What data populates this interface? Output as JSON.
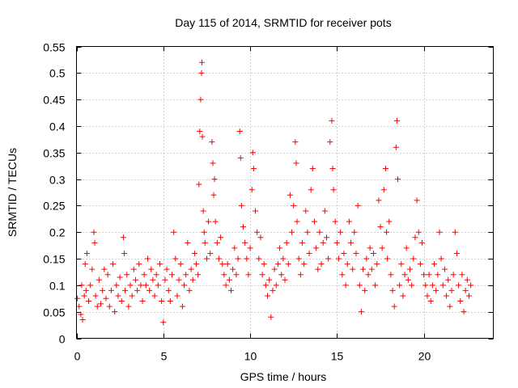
{
  "chart_data": {
    "type": "scatter",
    "title": "Day 115 of 2014, SRMTID for receiver pots",
    "xlabel": "GPS time / hours",
    "ylabel": "SRMTID / TECUs",
    "xlim": [
      0,
      24
    ],
    "ylim": [
      0,
      0.55
    ],
    "x_ticks": [
      0,
      5,
      10,
      15,
      20
    ],
    "x_tick_labels": [
      "0",
      "5",
      "10",
      "15",
      "20"
    ],
    "y_ticks": [
      0,
      0.05,
      0.1,
      0.15,
      0.2,
      0.25,
      0.3,
      0.35,
      0.4,
      0.45,
      0.5,
      0.55
    ],
    "y_tick_labels": [
      "0",
      "0.05",
      "0.1",
      "0.15",
      "0.2",
      "0.25",
      "0.3",
      "0.35",
      "0.4",
      "0.45",
      "0.5",
      "0.55"
    ],
    "grid": true,
    "marker": "plus",
    "colors": {
      "series": "#ff0000",
      "grid": "#a0a0a0",
      "axes": "#000000"
    },
    "series": [
      {
        "name": "SRMTID",
        "points": [
          [
            0.05,
            0.075
          ],
          [
            0.15,
            0.06
          ],
          [
            0.25,
            0.045
          ],
          [
            0.3,
            0.1
          ],
          [
            0.35,
            0.035
          ],
          [
            0.45,
            0.08
          ],
          [
            0.5,
            0.14
          ],
          [
            0.55,
            0.09
          ],
          [
            0.6,
            0.16
          ],
          [
            0.7,
            0.07
          ],
          [
            0.8,
            0.1
          ],
          [
            0.9,
            0.13
          ],
          [
            1.0,
            0.2
          ],
          [
            1.05,
            0.18
          ],
          [
            1.1,
            0.08
          ],
          [
            1.2,
            0.06
          ],
          [
            1.3,
            0.11
          ],
          [
            1.4,
            0.065
          ],
          [
            1.5,
            0.09
          ],
          [
            1.6,
            0.13
          ],
          [
            1.7,
            0.075
          ],
          [
            1.8,
            0.12
          ],
          [
            1.9,
            0.06
          ],
          [
            2.0,
            0.09
          ],
          [
            2.1,
            0.14
          ],
          [
            2.2,
            0.05
          ],
          [
            2.3,
            0.1
          ],
          [
            2.4,
            0.08
          ],
          [
            2.5,
            0.115
          ],
          [
            2.6,
            0.07
          ],
          [
            2.7,
            0.19
          ],
          [
            2.75,
            0.16
          ],
          [
            2.8,
            0.09
          ],
          [
            2.9,
            0.12
          ],
          [
            3.0,
            0.06
          ],
          [
            3.1,
            0.1
          ],
          [
            3.2,
            0.08
          ],
          [
            3.3,
            0.13
          ],
          [
            3.4,
            0.11
          ],
          [
            3.5,
            0.09
          ],
          [
            3.6,
            0.14
          ],
          [
            3.7,
            0.1
          ],
          [
            3.8,
            0.07
          ],
          [
            3.9,
            0.12
          ],
          [
            4.0,
            0.1
          ],
          [
            4.1,
            0.15
          ],
          [
            4.2,
            0.09
          ],
          [
            4.3,
            0.13
          ],
          [
            4.4,
            0.11
          ],
          [
            4.5,
            0.08
          ],
          [
            4.6,
            0.12
          ],
          [
            4.7,
            0.1
          ],
          [
            4.8,
            0.14
          ],
          [
            4.9,
            0.07
          ],
          [
            5.0,
            0.03
          ],
          [
            5.1,
            0.11
          ],
          [
            5.2,
            0.13
          ],
          [
            5.3,
            0.09
          ],
          [
            5.4,
            0.07
          ],
          [
            5.5,
            0.12
          ],
          [
            5.6,
            0.2
          ],
          [
            5.7,
            0.15
          ],
          [
            5.8,
            0.08
          ],
          [
            5.9,
            0.11
          ],
          [
            6.0,
            0.14
          ],
          [
            6.1,
            0.06
          ],
          [
            6.2,
            0.1
          ],
          [
            6.3,
            0.12
          ],
          [
            6.4,
            0.18
          ],
          [
            6.5,
            0.09
          ],
          [
            6.6,
            0.13
          ],
          [
            6.7,
            0.11
          ],
          [
            6.8,
            0.16
          ],
          [
            6.9,
            0.14
          ],
          [
            7.0,
            0.12
          ],
          [
            7.05,
            0.29
          ],
          [
            7.1,
            0.39
          ],
          [
            7.15,
            0.45
          ],
          [
            7.2,
            0.5
          ],
          [
            7.22,
            0.52
          ],
          [
            7.25,
            0.38
          ],
          [
            7.3,
            0.24
          ],
          [
            7.35,
            0.2
          ],
          [
            7.4,
            0.18
          ],
          [
            7.5,
            0.15
          ],
          [
            7.6,
            0.22
          ],
          [
            7.7,
            0.16
          ],
          [
            7.8,
            0.37
          ],
          [
            7.85,
            0.33
          ],
          [
            7.9,
            0.27
          ],
          [
            7.95,
            0.3
          ],
          [
            8.0,
            0.22
          ],
          [
            8.1,
            0.18
          ],
          [
            8.2,
            0.15
          ],
          [
            8.3,
            0.19
          ],
          [
            8.4,
            0.14
          ],
          [
            8.5,
            0.12
          ],
          [
            8.6,
            0.1
          ],
          [
            8.7,
            0.14
          ],
          [
            8.8,
            0.11
          ],
          [
            8.9,
            0.09
          ],
          [
            9.0,
            0.13
          ],
          [
            9.1,
            0.17
          ],
          [
            9.2,
            0.12
          ],
          [
            9.3,
            0.15
          ],
          [
            9.4,
            0.39
          ],
          [
            9.45,
            0.34
          ],
          [
            9.5,
            0.25
          ],
          [
            9.6,
            0.21
          ],
          [
            9.7,
            0.18
          ],
          [
            9.8,
            0.15
          ],
          [
            9.9,
            0.12
          ],
          [
            10.0,
            0.17
          ],
          [
            10.1,
            0.28
          ],
          [
            10.15,
            0.35
          ],
          [
            10.2,
            0.32
          ],
          [
            10.3,
            0.24
          ],
          [
            10.4,
            0.2
          ],
          [
            10.5,
            0.15
          ],
          [
            10.6,
            0.19
          ],
          [
            10.7,
            0.12
          ],
          [
            10.8,
            0.14
          ],
          [
            10.9,
            0.1
          ],
          [
            11.0,
            0.08
          ],
          [
            11.1,
            0.11
          ],
          [
            11.2,
            0.04
          ],
          [
            11.3,
            0.09
          ],
          [
            11.4,
            0.13
          ],
          [
            11.5,
            0.1
          ],
          [
            11.6,
            0.14
          ],
          [
            11.7,
            0.17
          ],
          [
            11.8,
            0.12
          ],
          [
            11.9,
            0.15
          ],
          [
            12.0,
            0.11
          ],
          [
            12.1,
            0.18
          ],
          [
            12.2,
            0.14
          ],
          [
            12.3,
            0.27
          ],
          [
            12.4,
            0.2
          ],
          [
            12.5,
            0.25
          ],
          [
            12.6,
            0.37
          ],
          [
            12.65,
            0.33
          ],
          [
            12.7,
            0.22
          ],
          [
            12.8,
            0.15
          ],
          [
            12.9,
            0.12
          ],
          [
            13.0,
            0.18
          ],
          [
            13.1,
            0.14
          ],
          [
            13.2,
            0.24
          ],
          [
            13.3,
            0.2
          ],
          [
            13.4,
            0.16
          ],
          [
            13.5,
            0.28
          ],
          [
            13.6,
            0.32
          ],
          [
            13.7,
            0.22
          ],
          [
            13.8,
            0.17
          ],
          [
            13.9,
            0.13
          ],
          [
            14.0,
            0.2
          ],
          [
            14.1,
            0.14
          ],
          [
            14.2,
            0.18
          ],
          [
            14.3,
            0.24
          ],
          [
            14.4,
            0.19
          ],
          [
            14.5,
            0.15
          ],
          [
            14.6,
            0.37
          ],
          [
            14.7,
            0.41
          ],
          [
            14.75,
            0.32
          ],
          [
            14.8,
            0.28
          ],
          [
            14.9,
            0.22
          ],
          [
            15.0,
            0.18
          ],
          [
            15.1,
            0.15
          ],
          [
            15.2,
            0.2
          ],
          [
            15.3,
            0.12
          ],
          [
            15.4,
            0.16
          ],
          [
            15.5,
            0.1
          ],
          [
            15.6,
            0.14
          ],
          [
            15.7,
            0.22
          ],
          [
            15.8,
            0.18
          ],
          [
            15.9,
            0.13
          ],
          [
            16.0,
            0.2
          ],
          [
            16.1,
            0.16
          ],
          [
            16.2,
            0.25
          ],
          [
            16.3,
            0.1
          ],
          [
            16.4,
            0.05
          ],
          [
            16.5,
            0.13
          ],
          [
            16.6,
            0.09
          ],
          [
            16.7,
            0.15
          ],
          [
            16.8,
            0.12
          ],
          [
            16.9,
            0.17
          ],
          [
            17.0,
            0.13
          ],
          [
            17.1,
            0.16
          ],
          [
            17.2,
            0.1
          ],
          [
            17.3,
            0.14
          ],
          [
            17.4,
            0.26
          ],
          [
            17.5,
            0.21
          ],
          [
            17.6,
            0.17
          ],
          [
            17.7,
            0.28
          ],
          [
            17.8,
            0.32
          ],
          [
            17.85,
            0.2
          ],
          [
            17.9,
            0.15
          ],
          [
            18.0,
            0.22
          ],
          [
            18.1,
            0.12
          ],
          [
            18.2,
            0.09
          ],
          [
            18.3,
            0.06
          ],
          [
            18.4,
            0.36
          ],
          [
            18.45,
            0.41
          ],
          [
            18.5,
            0.3
          ],
          [
            18.6,
            0.1
          ],
          [
            18.7,
            0.14
          ],
          [
            18.8,
            0.08
          ],
          [
            18.9,
            0.12
          ],
          [
            19.0,
            0.17
          ],
          [
            19.1,
            0.11
          ],
          [
            19.2,
            0.13
          ],
          [
            19.3,
            0.1
          ],
          [
            19.4,
            0.15
          ],
          [
            19.5,
            0.19
          ],
          [
            19.6,
            0.26
          ],
          [
            19.7,
            0.2
          ],
          [
            19.8,
            0.14
          ],
          [
            19.9,
            0.18
          ],
          [
            20.0,
            0.12
          ],
          [
            20.1,
            0.1
          ],
          [
            20.2,
            0.08
          ],
          [
            20.3,
            0.12
          ],
          [
            20.4,
            0.07
          ],
          [
            20.5,
            0.1
          ],
          [
            20.6,
            0.14
          ],
          [
            20.7,
            0.09
          ],
          [
            20.8,
            0.12
          ],
          [
            20.9,
            0.2
          ],
          [
            21.0,
            0.15
          ],
          [
            21.1,
            0.1
          ],
          [
            21.2,
            0.13
          ],
          [
            21.3,
            0.08
          ],
          [
            21.4,
            0.11
          ],
          [
            21.5,
            0.06
          ],
          [
            21.6,
            0.09
          ],
          [
            21.7,
            0.12
          ],
          [
            21.8,
            0.2
          ],
          [
            21.9,
            0.16
          ],
          [
            22.0,
            0.1
          ],
          [
            22.1,
            0.07
          ],
          [
            22.2,
            0.12
          ],
          [
            22.3,
            0.05
          ],
          [
            22.4,
            0.09
          ],
          [
            22.5,
            0.11
          ],
          [
            22.6,
            0.08
          ],
          [
            22.7,
            0.1
          ]
        ]
      }
    ]
  }
}
